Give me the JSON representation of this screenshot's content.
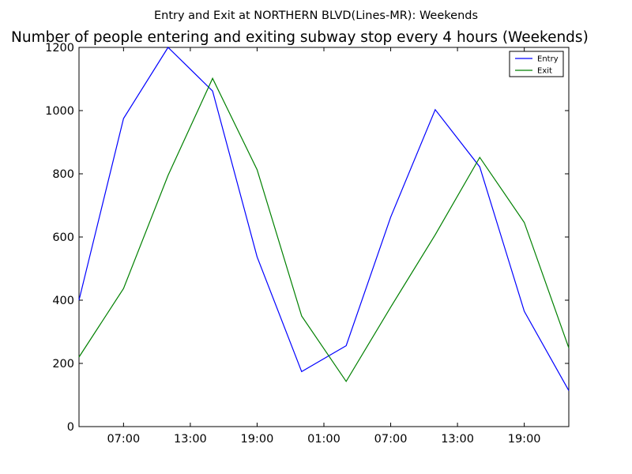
{
  "figure": {
    "suptitle": "Entry and Exit at NORTHERN BLVD(Lines-MR): Weekends"
  },
  "chart_data": {
    "type": "line",
    "title": "Number of people entering and exiting subway stop every 4 hours (Weekends)",
    "xlabel": "",
    "ylabel": "",
    "ylim": [
      0,
      1200
    ],
    "grid": false,
    "legend_position": "top-right",
    "x_ticks": [
      "07:00",
      "13:00",
      "19:00",
      "01:00",
      "07:00",
      "13:00",
      "19:00"
    ],
    "y_ticks": [
      "0",
      "200",
      "400",
      "600",
      "800",
      "1000",
      "1200"
    ],
    "x": [
      0,
      1,
      2,
      3,
      4,
      5,
      6,
      7,
      8,
      9,
      10,
      11
    ],
    "series": [
      {
        "name": "Entry",
        "color": "#0000ff",
        "values": [
          400,
          975,
          1200,
          1062,
          537,
          174,
          256,
          663,
          1003,
          822,
          365,
          114
        ]
      },
      {
        "name": "Exit",
        "color": "#008000",
        "values": [
          220,
          437,
          795,
          1102,
          813,
          350,
          143,
          378,
          607,
          852,
          646,
          249
        ]
      }
    ]
  }
}
